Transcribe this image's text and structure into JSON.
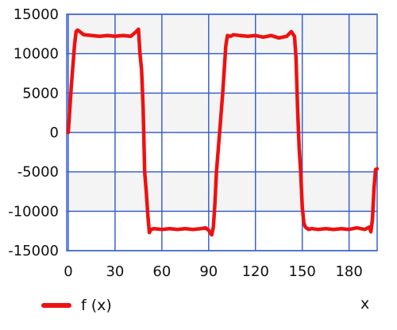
{
  "chart_data": {
    "type": "line",
    "title": "",
    "xlabel": "x",
    "ylabel": "",
    "xlim": [
      -1,
      198
    ],
    "ylim": [
      -15000,
      15000
    ],
    "x_ticks": [
      0,
      30,
      60,
      90,
      120,
      150,
      180
    ],
    "y_ticks": [
      15000,
      10000,
      5000,
      0,
      -5000,
      -10000,
      -15000
    ],
    "grid": true,
    "legend": "bottom-left",
    "colors": {
      "series": "#ee1111",
      "grid": "#3a62d0",
      "band": "#f4f4f4",
      "background": "#ffffff"
    },
    "series": [
      {
        "name": "f (x)",
        "x": [
          0,
          2,
          4,
          5,
          6,
          8,
          10,
          15,
          20,
          25,
          30,
          35,
          40,
          43,
          45,
          46,
          47,
          48,
          49,
          50,
          51,
          52,
          53,
          55,
          60,
          65,
          70,
          75,
          80,
          85,
          88,
          90,
          92,
          93,
          94,
          95,
          97,
          99,
          101,
          102,
          104,
          106,
          110,
          115,
          120,
          125,
          130,
          135,
          140,
          143,
          145,
          146,
          147,
          148,
          149,
          150,
          151,
          152,
          154,
          156,
          160,
          165,
          170,
          175,
          180,
          185,
          190,
          193,
          194,
          195,
          196,
          197,
          198
        ],
        "y": [
          0,
          6000,
          11000,
          12800,
          13000,
          12700,
          12400,
          12300,
          12200,
          12300,
          12200,
          12300,
          12200,
          12700,
          13100,
          10000,
          8000,
          3000,
          -5000,
          -7500,
          -10500,
          -12700,
          -12300,
          -12200,
          -12300,
          -12200,
          -12300,
          -12200,
          -12300,
          -12200,
          -12100,
          -12400,
          -13000,
          -12000,
          -9000,
          -5000,
          0,
          5000,
          11000,
          12300,
          12200,
          12400,
          12300,
          12200,
          12300,
          12100,
          12300,
          12000,
          12200,
          12800,
          12200,
          9500,
          3000,
          -2000,
          -5000,
          -9500,
          -11500,
          -12000,
          -12300,
          -12200,
          -12300,
          -12200,
          -12300,
          -12200,
          -12300,
          -12100,
          -12300,
          -12000,
          -12600,
          -11000,
          -7000,
          -4700,
          -4600
        ]
      }
    ]
  }
}
